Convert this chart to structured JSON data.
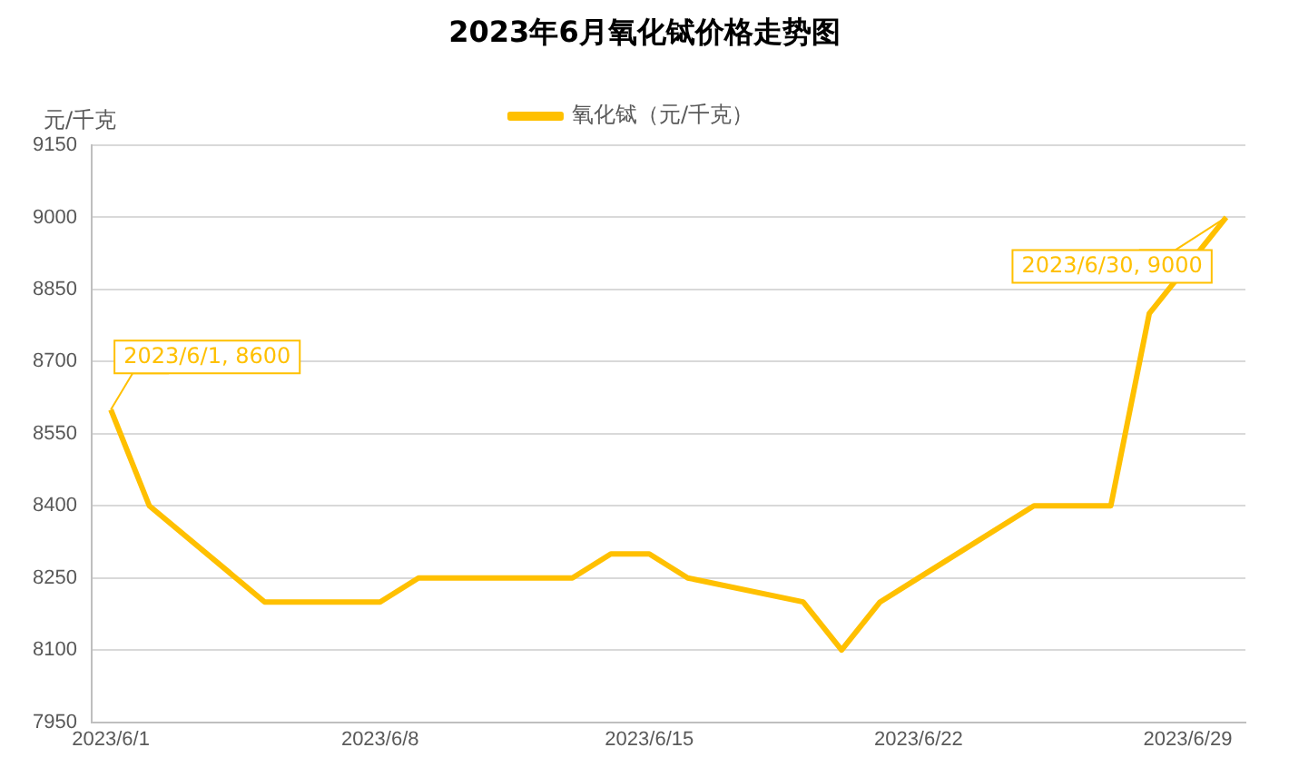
{
  "chart_data": {
    "type": "line",
    "title": "2023年6月氧化铽价格走势图",
    "ylabel": "元/千克",
    "x": [
      "2023-06-01",
      "2023-06-02",
      "2023-06-05",
      "2023-06-06",
      "2023-06-07",
      "2023-06-08",
      "2023-06-09",
      "2023-06-12",
      "2023-06-13",
      "2023-06-14",
      "2023-06-15",
      "2023-06-16",
      "2023-06-19",
      "2023-06-20",
      "2023-06-21",
      "2023-06-25",
      "2023-06-26",
      "2023-06-27",
      "2023-06-28",
      "2023-06-30"
    ],
    "series": [
      {
        "name": "氧化铽（元/千克）",
        "color": "#ffc000",
        "values": [
          8600,
          8400,
          8200,
          8200,
          8200,
          8200,
          8250,
          8250,
          8250,
          8300,
          8300,
          8250,
          8200,
          8100,
          8200,
          8400,
          8400,
          8400,
          8800,
          9000
        ]
      }
    ],
    "xlim": [
      "2023-05-31T12:00",
      "2023-06-30T12:00"
    ],
    "xticks": [
      {
        "value": "2023-06-01",
        "label": "2023/6/1"
      },
      {
        "value": "2023-06-08",
        "label": "2023/6/8"
      },
      {
        "value": "2023-06-15",
        "label": "2023/6/15"
      },
      {
        "value": "2023-06-22",
        "label": "2023/6/22"
      },
      {
        "value": "2023-06-29",
        "label": "2023/6/29"
      }
    ],
    "ylim": [
      7950,
      9150
    ],
    "yticks": [
      7950,
      8100,
      8250,
      8400,
      8550,
      8700,
      8850,
      9000,
      9150
    ],
    "grid": "y",
    "legend": "top",
    "marker": "none",
    "line_style": "solid",
    "annotations": [
      {
        "text": "2023/6/1, 8600",
        "x": "2023-06-01",
        "y": 8600
      },
      {
        "text": "2023/6/30, 9000",
        "x": "2023-06-30",
        "y": 9000
      }
    ]
  }
}
